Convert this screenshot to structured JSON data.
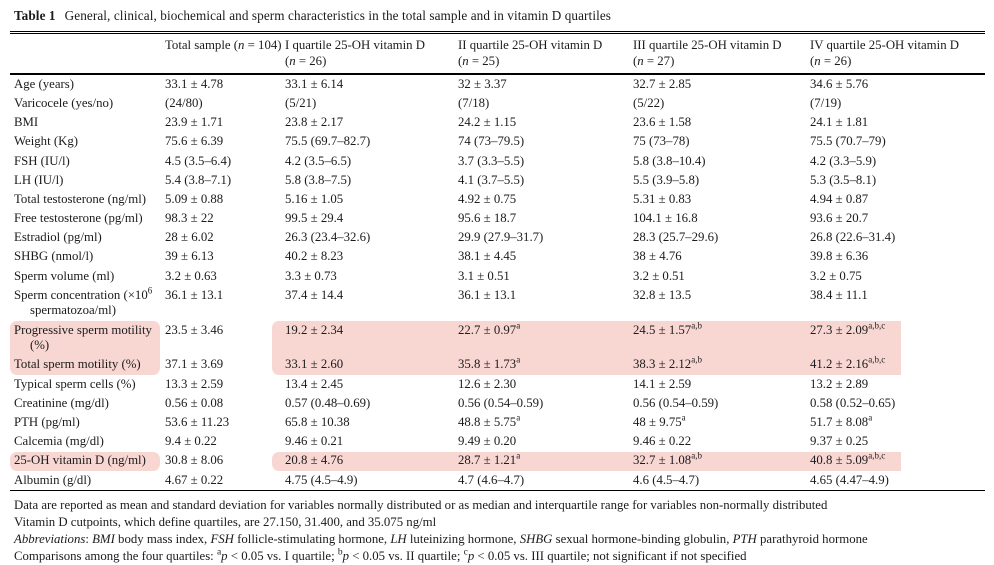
{
  "colors": {
    "highlight": "#f8d7d3",
    "text": "#1b1b1b",
    "rule": "#000000"
  },
  "caption": {
    "label": "Table 1",
    "text": "General, clinical, biochemical and sperm characteristics in the total sample and in vitamin D quartiles"
  },
  "header": {
    "cols": [
      {
        "lines": []
      },
      {
        "lines": [
          [
            {
              "t": "Total sample ("
            },
            {
              "t": "n",
              "i": 1
            },
            {
              "t": " = 104)"
            }
          ]
        ]
      },
      {
        "lines": [
          [
            {
              "t": "I quartile 25-OH vitamin D"
            }
          ],
          [
            {
              "t": "("
            },
            {
              "t": "n",
              "i": 1
            },
            {
              "t": " = 26)"
            }
          ]
        ]
      },
      {
        "lines": [
          [
            {
              "t": "II quartile 25-OH vitamin D"
            }
          ],
          [
            {
              "t": "("
            },
            {
              "t": "n",
              "i": 1
            },
            {
              "t": " = 25)"
            }
          ]
        ]
      },
      {
        "lines": [
          [
            {
              "t": "III quartile 25-OH vitamin D"
            }
          ],
          [
            {
              "t": "("
            },
            {
              "t": "n",
              "i": 1
            },
            {
              "t": " = 27)"
            }
          ]
        ]
      },
      {
        "lines": [
          [
            {
              "t": "IV quartile 25-OH vitamin D"
            }
          ],
          [
            {
              "t": "("
            },
            {
              "t": "n",
              "i": 1
            },
            {
              "t": " = 26)"
            }
          ]
        ]
      }
    ]
  },
  "rows": [
    {
      "label": [
        {
          "t": "Age (years)"
        }
      ],
      "cells": [
        {
          "v": "33.1 ± 4.78"
        },
        {
          "v": "33.1 ± 6.14"
        },
        {
          "v": "32 ± 3.37"
        },
        {
          "v": "32.7 ± 2.85"
        },
        {
          "v": "34.6 ± 5.76"
        }
      ]
    },
    {
      "label": [
        {
          "t": "Varicocele (yes/no)"
        }
      ],
      "cells": [
        {
          "v": "(24/80)"
        },
        {
          "v": "(5/21)"
        },
        {
          "v": "(7/18)"
        },
        {
          "v": "(5/22)"
        },
        {
          "v": "(7/19)"
        }
      ]
    },
    {
      "label": [
        {
          "t": "BMI"
        }
      ],
      "cells": [
        {
          "v": "23.9 ± 1.71"
        },
        {
          "v": "23.8 ± 2.17"
        },
        {
          "v": "24.2 ± 1.15"
        },
        {
          "v": "23.6 ± 1.58"
        },
        {
          "v": "24.1 ± 1.81"
        }
      ]
    },
    {
      "label": [
        {
          "t": "Weight (Kg)"
        }
      ],
      "cells": [
        {
          "v": "75.6 ± 6.39"
        },
        {
          "v": "75.5 (69.7–82.7)"
        },
        {
          "v": "74 (73–79.5)"
        },
        {
          "v": "75 (73–78)"
        },
        {
          "v": "75.5 (70.7–79)"
        }
      ]
    },
    {
      "label": [
        {
          "t": "FSH (IU/l)"
        }
      ],
      "cells": [
        {
          "v": "4.5 (3.5–6.4)"
        },
        {
          "v": "4.2 (3.5–6.5)"
        },
        {
          "v": "3.7 (3.3–5.5)"
        },
        {
          "v": "5.8 (3.8–10.4)"
        },
        {
          "v": "4.2 (3.3–5.9)"
        }
      ]
    },
    {
      "label": [
        {
          "t": "LH (IU/l)"
        }
      ],
      "cells": [
        {
          "v": "5.4 (3.8–7.1)"
        },
        {
          "v": "5.8 (3.8–7.5)"
        },
        {
          "v": "4.1 (3.7–5.5)"
        },
        {
          "v": "5.5 (3.9–5.8)"
        },
        {
          "v": "5.3 (3.5–8.1)"
        }
      ]
    },
    {
      "label": [
        {
          "t": "Total testosterone (ng/ml)"
        }
      ],
      "cells": [
        {
          "v": "5.09 ± 0.88"
        },
        {
          "v": "5.16 ± 1.05"
        },
        {
          "v": "4.92 ± 0.75"
        },
        {
          "v": "5.31 ± 0.83"
        },
        {
          "v": "4.94 ± 0.87"
        }
      ]
    },
    {
      "label": [
        {
          "t": "Free testosterone (pg/ml)"
        }
      ],
      "cells": [
        {
          "v": "98.3 ± 22"
        },
        {
          "v": "99.5 ± 29.4"
        },
        {
          "v": "95.6 ± 18.7"
        },
        {
          "v": "104.1 ± 16.8"
        },
        {
          "v": "93.6 ± 20.7"
        }
      ]
    },
    {
      "label": [
        {
          "t": "Estradiol (pg/ml)"
        }
      ],
      "cells": [
        {
          "v": "28 ± 6.02"
        },
        {
          "v": "26.3 (23.4–32.6)"
        },
        {
          "v": "29.9 (27.9–31.7)"
        },
        {
          "v": "28.3 (25.7–29.6)"
        },
        {
          "v": "26.8 (22.6–31.4)"
        }
      ]
    },
    {
      "label": [
        {
          "t": "SHBG (nmol/l)"
        }
      ],
      "cells": [
        {
          "v": "39 ± 6.13"
        },
        {
          "v": "40.2 ± 8.23"
        },
        {
          "v": "38.1 ± 4.45"
        },
        {
          "v": "38 ± 4.76"
        },
        {
          "v": "39.8 ± 6.36"
        }
      ]
    },
    {
      "label": [
        {
          "t": "Sperm volume (ml)"
        }
      ],
      "cells": [
        {
          "v": "3.2 ± 0.63"
        },
        {
          "v": "3.3 ± 0.73"
        },
        {
          "v": "3.1 ± 0.51"
        },
        {
          "v": "3.2 ± 0.51"
        },
        {
          "v": "3.2 ± 0.75"
        }
      ]
    },
    {
      "label": [
        {
          "t": "Sperm concentration (×10"
        },
        {
          "t": "6",
          "sup": 1
        },
        {
          "t": " spermatozoa/ml)"
        }
      ],
      "cells": [
        {
          "v": "36.1 ± 13.1"
        },
        {
          "v": "37.4 ± 14.4"
        },
        {
          "v": "36.1 ± 13.1"
        },
        {
          "v": "32.8 ± 13.5"
        },
        {
          "v": "38.4 ± 11.1"
        }
      ]
    },
    {
      "label": [
        {
          "t": "Progressive sperm motility (%)"
        }
      ],
      "hl": "top",
      "cells": [
        {
          "v": "23.5 ± 3.46"
        },
        {
          "v": "19.2 ± 2.34"
        },
        {
          "v": "22.7 ± 0.97",
          "sup": "a"
        },
        {
          "v": "24.5 ± 1.57",
          "sup": "a,b"
        },
        {
          "v": "27.3 ± 2.09",
          "sup": "a,b,c"
        }
      ]
    },
    {
      "label": [
        {
          "t": "Total sperm motility (%)"
        }
      ],
      "hl": "bottom",
      "cells": [
        {
          "v": "37.1 ± 3.69"
        },
        {
          "v": "33.1 ± 2.60"
        },
        {
          "v": "35.8 ± 1.73",
          "sup": "a"
        },
        {
          "v": "38.3 ± 2.12",
          "sup": "a,b"
        },
        {
          "v": "41.2 ± 2.16",
          "sup": "a,b,c"
        }
      ]
    },
    {
      "label": [
        {
          "t": "Typical sperm cells (%)"
        }
      ],
      "cells": [
        {
          "v": "13.3 ± 2.59"
        },
        {
          "v": "13.4 ± 2.45"
        },
        {
          "v": "12.6 ± 2.30"
        },
        {
          "v": "14.1 ± 2.59"
        },
        {
          "v": "13.2 ± 2.89"
        }
      ]
    },
    {
      "label": [
        {
          "t": "Creatinine (mg/dl)"
        }
      ],
      "cells": [
        {
          "v": "0.56 ± 0.08"
        },
        {
          "v": "0.57 (0.48–0.69)"
        },
        {
          "v": "0.56 (0.54–0.59)"
        },
        {
          "v": "0.56 (0.54–0.59)"
        },
        {
          "v": "0.58 (0.52–0.65)"
        }
      ]
    },
    {
      "label": [
        {
          "t": "PTH (pg/ml)"
        }
      ],
      "cells": [
        {
          "v": "53.6 ± 11.23"
        },
        {
          "v": "65.8 ± 10.38"
        },
        {
          "v": "48.8 ± 5.75",
          "sup": "a"
        },
        {
          "v": "48 ± 9.75",
          "sup": "a"
        },
        {
          "v": "51.7 ± 8.08",
          "sup": "a"
        }
      ]
    },
    {
      "label": [
        {
          "t": "Calcemia (mg/dl)"
        }
      ],
      "cells": [
        {
          "v": "9.4 ± 0.22"
        },
        {
          "v": "9.46 ± 0.21"
        },
        {
          "v": "9.49 ± 0.20"
        },
        {
          "v": "9.46 ± 0.22"
        },
        {
          "v": "9.37 ± 0.25"
        }
      ]
    },
    {
      "label": [
        {
          "t": "25-OH vitamin D (ng/ml)"
        }
      ],
      "hl": "solo",
      "cells": [
        {
          "v": "30.8 ± 8.06"
        },
        {
          "v": "20.8 ± 4.76"
        },
        {
          "v": "28.7 ± 1.21",
          "sup": "a"
        },
        {
          "v": "32.7 ± 1.08",
          "sup": "a,b"
        },
        {
          "v": "40.8 ± 5.09",
          "sup": "a,b,c"
        }
      ]
    },
    {
      "label": [
        {
          "t": "Albumin (g/dl)"
        }
      ],
      "cells": [
        {
          "v": "4.67 ± 0.22"
        },
        {
          "v": "4.75 (4.5–4.9)"
        },
        {
          "v": "4.7 (4.6–4.7)"
        },
        {
          "v": "4.6 (4.5–4.7)"
        },
        {
          "v": "4.65 (4.47–4.9)"
        }
      ]
    }
  ],
  "footnotes": [
    {
      "parts": [
        {
          "t": "Data are reported as mean and standard deviation for variables normally distributed or as median and interquartile range for variables non-normally distributed"
        }
      ]
    },
    {
      "parts": [
        {
          "t": "Vitamin D cutpoints, which define quartiles, are 27.150, 31.400, and 35.075 ng/ml"
        }
      ]
    },
    {
      "parts": [
        {
          "t": "Abbreviations",
          "i": 1
        },
        {
          "t": ": "
        },
        {
          "t": "BMI",
          "i": 1
        },
        {
          "t": " body mass index, "
        },
        {
          "t": "FSH",
          "i": 1
        },
        {
          "t": " follicle-stimulating hormone, "
        },
        {
          "t": "LH",
          "i": 1
        },
        {
          "t": " luteinizing hormone, "
        },
        {
          "t": "SHBG",
          "i": 1
        },
        {
          "t": " sexual hormone-binding globulin, "
        },
        {
          "t": "PTH",
          "i": 1
        },
        {
          "t": " parathyroid hormone"
        }
      ]
    },
    {
      "parts": [
        {
          "t": "Comparisons among the four quartiles: "
        },
        {
          "t": "a",
          "sup": 1
        },
        {
          "t": "p",
          "i": 1
        },
        {
          "t": " < 0.05 vs. I quartile; "
        },
        {
          "t": "b",
          "sup": 1
        },
        {
          "t": "p",
          "i": 1
        },
        {
          "t": " < 0.05 vs. II quartile; "
        },
        {
          "t": "c",
          "sup": 1
        },
        {
          "t": "p",
          "i": 1
        },
        {
          "t": " < 0.05 vs. III quartile; not significant if not specified"
        }
      ]
    }
  ]
}
